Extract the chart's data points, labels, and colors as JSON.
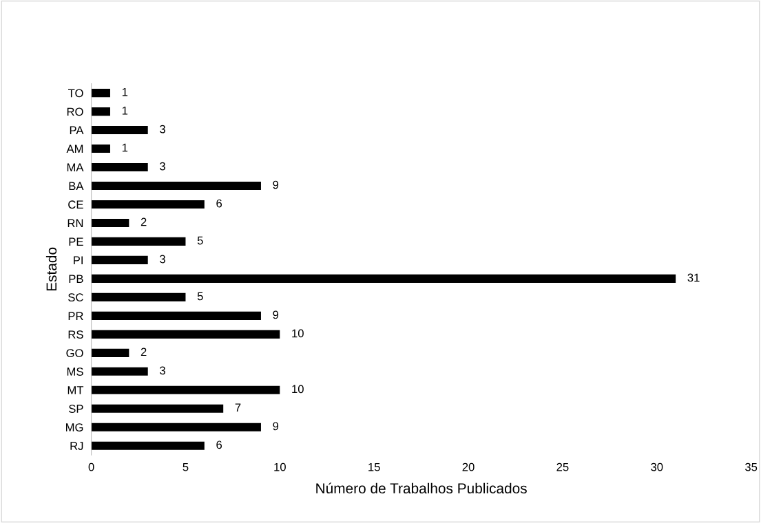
{
  "chart_data": {
    "type": "bar",
    "orientation": "horizontal",
    "xlabel": "Número de Trabalhos Publicados",
    "ylabel": "Estado",
    "categories": [
      "TO",
      "RO",
      "PA",
      "AM",
      "MA",
      "BA",
      "CE",
      "RN",
      "PE",
      "PI",
      "PB",
      "SC",
      "PR",
      "RS",
      "GO",
      "MS",
      "MT",
      "SP",
      "MG",
      "RJ"
    ],
    "values": [
      1,
      1,
      3,
      1,
      3,
      9,
      6,
      2,
      5,
      3,
      31,
      5,
      9,
      10,
      2,
      3,
      10,
      7,
      9,
      6
    ],
    "color": "#000000",
    "data_labels": true,
    "grid": false,
    "legend": false,
    "xlim": [
      0,
      35
    ],
    "xticks": [
      0,
      5,
      10,
      15,
      20,
      25,
      30,
      35
    ]
  }
}
